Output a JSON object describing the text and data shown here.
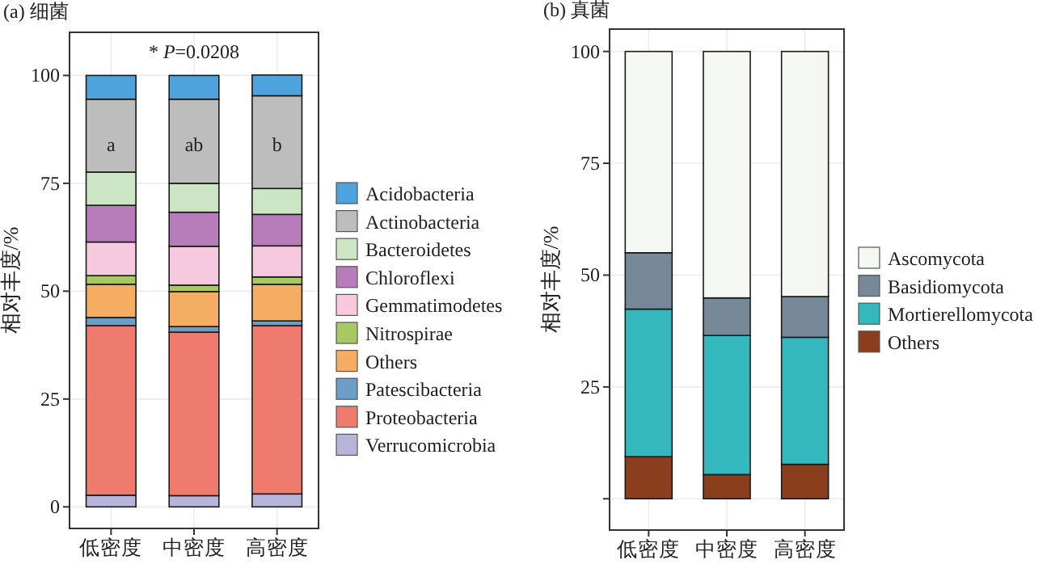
{
  "chart_data": [
    {
      "type": "bar",
      "title": "(a) 细菌",
      "ylabel": "相对丰度/%",
      "stacked": true,
      "legend": "right",
      "grid": true,
      "categories": [
        "低密度",
        "中密度",
        "高密度"
      ],
      "ylim": [
        -5,
        110
      ],
      "yticks": [
        0,
        25,
        50,
        75,
        100
      ],
      "series": [
        {
          "name": "Verrucomicrobia",
          "color": "#b7b4d9",
          "values": [
            2.7,
            2.6,
            3.0
          ]
        },
        {
          "name": "Proteobacteria",
          "color": "#ef7a6e",
          "values": [
            39.3,
            37.9,
            39.0
          ]
        },
        {
          "name": "Patescibacteria",
          "color": "#6b9fc7",
          "values": [
            1.9,
            1.3,
            1.1
          ]
        },
        {
          "name": "Others",
          "color": "#f4ad62",
          "values": [
            7.7,
            8.1,
            8.5
          ]
        },
        {
          "name": "Nitrospirae",
          "color": "#a8c862",
          "values": [
            2.0,
            1.5,
            1.7
          ]
        },
        {
          "name": "Gemmatimodetes",
          "color": "#f7c9de",
          "values": [
            7.8,
            9.0,
            7.2
          ]
        },
        {
          "name": "Chloroflexi",
          "color": "#b77cba",
          "values": [
            8.5,
            7.9,
            7.3
          ]
        },
        {
          "name": "Bacteroidetes",
          "color": "#cce5c5",
          "values": [
            7.7,
            6.7,
            6.0
          ]
        },
        {
          "name": "Actinobacteria",
          "color": "#bdbdbd",
          "values": [
            16.9,
            19.5,
            21.5
          ]
        },
        {
          "name": "Acidobacteria",
          "color": "#4fa3dc",
          "values": [
            5.5,
            5.5,
            4.8
          ]
        }
      ],
      "annotations": [
        "* *P*=0.0208",
        "a",
        "ab",
        "b"
      ]
    },
    {
      "type": "bar",
      "title": "(b) 真菌",
      "ylabel": "相对丰度/%",
      "stacked": true,
      "legend": "right",
      "grid": true,
      "categories": [
        "低密度",
        "中密度",
        "高密度"
      ],
      "ylim": [
        -7,
        105
      ],
      "yticks": [
        {
          "value": 0,
          "label": null
        },
        25,
        50,
        75,
        100
      ],
      "series": [
        {
          "name": "Others",
          "color": "#8b3e1e",
          "values": [
            9.4,
            5.4,
            7.7
          ]
        },
        {
          "name": "Mortierellomycota",
          "color": "#35b8bd",
          "values": [
            33.0,
            31.1,
            28.4
          ]
        },
        {
          "name": "Basidiomycota",
          "color": "#778899",
          "values": [
            12.6,
            8.4,
            9.1
          ]
        },
        {
          "name": "Ascomycota",
          "color": "#f5f7f3",
          "values": [
            45.0,
            55.1,
            54.8
          ]
        }
      ]
    }
  ]
}
